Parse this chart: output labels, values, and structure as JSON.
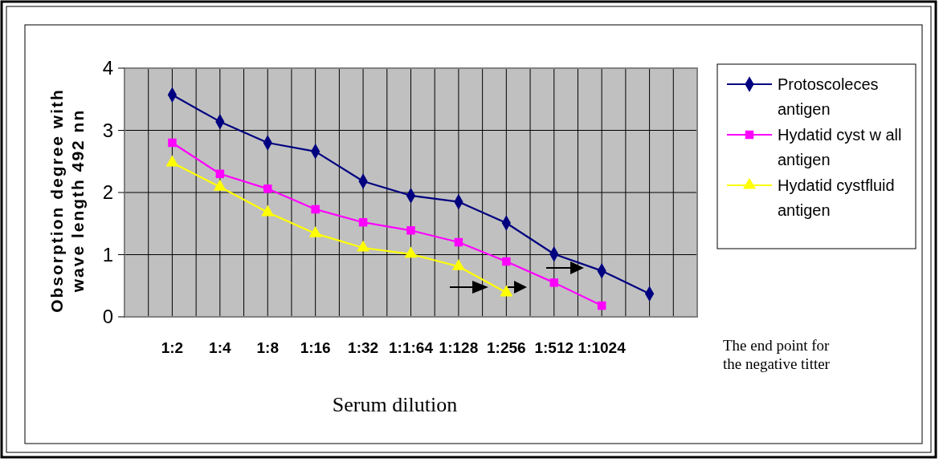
{
  "chart_data": {
    "type": "line",
    "xlabel": "Serum dilution",
    "ylabel": "Obsorption degree with\nwave length 492 nn",
    "categories": [
      "1:2",
      "1:4",
      "1:8",
      "1:16",
      "1:32",
      "1:1:64",
      "1:128",
      "1:256",
      "1:512",
      "1:1024",
      null
    ],
    "series": [
      {
        "name": "Protoscoleces antigen",
        "color": "#000080",
        "marker": "diamond",
        "values": [
          3.57,
          3.14,
          2.8,
          2.66,
          2.18,
          1.95,
          1.85,
          1.51,
          1.01,
          0.74,
          0.37
        ]
      },
      {
        "name": "Hydatid cyst w all antigen",
        "color": "#ff00ff",
        "marker": "square",
        "values": [
          2.8,
          2.3,
          2.06,
          1.73,
          1.52,
          1.39,
          1.2,
          0.89,
          0.55,
          0.18,
          null
        ]
      },
      {
        "name": "Hydatid cystfluid antigen",
        "color": "#ffff00",
        "marker": "triangle",
        "values": [
          2.48,
          2.09,
          1.68,
          1.34,
          1.11,
          1.01,
          0.81,
          0.39,
          null,
          null,
          null
        ]
      }
    ],
    "ylim": [
      0,
      4
    ],
    "yticks": [
      0,
      1,
      2,
      3,
      4
    ],
    "grid": true,
    "legend": "right",
    "annotations": [
      "The end point for the negative titter"
    ]
  }
}
